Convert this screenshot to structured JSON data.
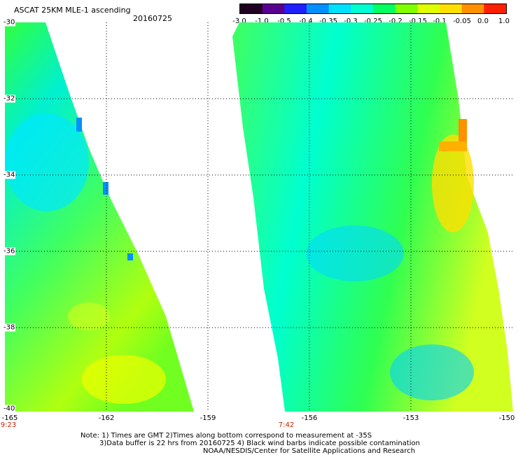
{
  "header": {
    "title": "ASCAT 25KM MLE-1 ascending",
    "date": "20160725"
  },
  "colorbar": {
    "labels": [
      "-3.0",
      "-1.0",
      "-0.5",
      "-0.4",
      "-0.35",
      "-0.3",
      "-0.25",
      "-0.2",
      "-0.15",
      "-0.1",
      "-0.05",
      "0.0",
      "1.0"
    ],
    "colors": [
      "#200020",
      "#5a0090",
      "#2020ff",
      "#0090ff",
      "#00e0ff",
      "#00ffd0",
      "#00ff60",
      "#80ff00",
      "#e0ff00",
      "#ffe000",
      "#ff9000",
      "#ff2000"
    ]
  },
  "map": {
    "lat_range": [
      -40,
      -30
    ],
    "lon_range": [
      -165,
      -150
    ],
    "lat_labels": [
      "-30",
      "-32",
      "-34",
      "-36",
      "-38",
      "-40"
    ],
    "lon_labels": [
      "-165",
      "-162",
      "-159",
      "-156",
      "-153",
      "-150"
    ],
    "time_labels": [
      "9:23",
      "7:42"
    ]
  },
  "notes": {
    "line1": "Note: 1) Times are GMT 2)Times along bottom correspond to measurement at -35S",
    "line2": "3)Data buffer is 22 hrs from 20160725 4) Black wind barbs indicate possible contamination",
    "line3": "NOAA/NESDIS/Center for Satellite Applications and Research"
  }
}
